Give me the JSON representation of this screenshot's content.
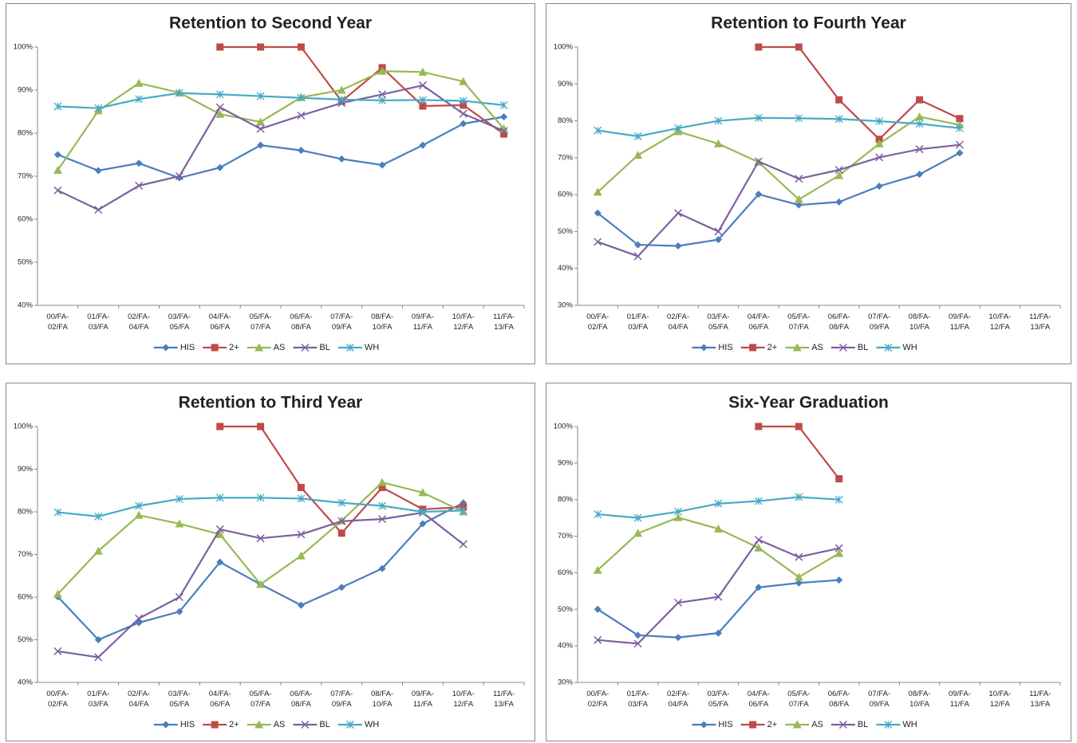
{
  "chart_data": [
    {
      "type": "line",
      "title": "Retention to Second Year",
      "categories": [
        "00/FA-02/FA",
        "01/FA-03/FA",
        "02/FA-04/FA",
        "03/FA-05/FA",
        "04/FA-06/FA",
        "05/FA-07/FA",
        "06/FA-08/FA",
        "07/FA-09/FA",
        "08/FA-10/FA",
        "09/FA-11/FA",
        "10/FA-12/FA",
        "11/FA-13/FA"
      ],
      "ylim": [
        40,
        100
      ],
      "yticks": [
        {
          "value": 40,
          "label": "40%"
        },
        {
          "value": 50,
          "label": "50%"
        },
        {
          "value": 60,
          "label": "60%"
        },
        {
          "value": 70,
          "label": "70%"
        },
        {
          "value": 80,
          "label": "80%"
        },
        {
          "value": 90,
          "label": "90%"
        },
        {
          "value": 100,
          "label": "100%"
        }
      ],
      "series": [
        {
          "name": "HIS",
          "color": "#4a7ebb",
          "marker": "diamond",
          "values": [
            75,
            71.3,
            73,
            69.6,
            72,
            77.2,
            76,
            74,
            72.6,
            77.2,
            82.2,
            83.8
          ]
        },
        {
          "name": "2+",
          "color": "#be4b48",
          "marker": "square",
          "values": [
            null,
            null,
            null,
            null,
            100,
            100,
            100,
            87.4,
            95.2,
            86.3,
            86.5,
            79.8
          ]
        },
        {
          "name": "AS",
          "color": "#98b954",
          "marker": "triangle",
          "values": [
            71.4,
            85.2,
            91.6,
            89.4,
            84.4,
            82.6,
            88.3,
            90,
            94.4,
            94.2,
            92,
            81
          ]
        },
        {
          "name": "BL",
          "color": "#7d60a0",
          "marker": "x",
          "values": [
            66.7,
            62.2,
            67.8,
            70,
            86,
            81,
            84.1,
            87,
            89,
            91.1,
            84.5,
            80.5
          ]
        },
        {
          "name": "WH",
          "color": "#46aac5",
          "marker": "star",
          "values": [
            86.2,
            85.8,
            87.9,
            89.3,
            89,
            88.6,
            88.2,
            87.8,
            87.6,
            87.7,
            87.5,
            86.5
          ]
        }
      ]
    },
    {
      "type": "line",
      "title": "Retention to Fourth Year",
      "categories": [
        "00/FA-02/FA",
        "01/FA-03/FA",
        "02/FA-04/FA",
        "03/FA-05/FA",
        "04/FA-06/FA",
        "05/FA-07/FA",
        "06/FA-08/FA",
        "07/FA-09/FA",
        "08/FA-10/FA",
        "09/FA-11/FA",
        "10/FA-12/FA",
        "11/FA-13/FA"
      ],
      "ylim": [
        30,
        100
      ],
      "yticks": [
        {
          "value": 30,
          "label": "30%"
        },
        {
          "value": 40,
          "label": "40%"
        },
        {
          "value": 50,
          "label": "50%"
        },
        {
          "value": 60,
          "label": "60%"
        },
        {
          "value": 70,
          "label": "70%"
        },
        {
          "value": 80,
          "label": "80%"
        },
        {
          "value": 90,
          "label": "90%"
        },
        {
          "value": 100,
          "label": "100%"
        }
      ],
      "series": [
        {
          "name": "HIS",
          "color": "#4a7ebb",
          "marker": "diamond",
          "values": [
            55,
            46.4,
            46.1,
            47.8,
            60.1,
            57.2,
            58,
            62.3,
            65.5,
            71.3,
            null,
            null
          ]
        },
        {
          "name": "2+",
          "color": "#be4b48",
          "marker": "square",
          "values": [
            null,
            null,
            null,
            null,
            100,
            100,
            85.7,
            75,
            85.7,
            80.6,
            null,
            null
          ]
        },
        {
          "name": "AS",
          "color": "#98b954",
          "marker": "triangle",
          "values": [
            60.7,
            70.7,
            77.1,
            73.8,
            68.8,
            58.7,
            65.2,
            73.8,
            81.1,
            78.9,
            null,
            null
          ]
        },
        {
          "name": "BL",
          "color": "#7d60a0",
          "marker": "x",
          "values": [
            47.2,
            43.3,
            55,
            50,
            69,
            64.3,
            66.7,
            70.1,
            72.3,
            73.5,
            null,
            null
          ]
        },
        {
          "name": "WH",
          "color": "#46aac5",
          "marker": "star",
          "values": [
            77.4,
            75.8,
            78,
            80,
            80.8,
            80.7,
            80.5,
            79.9,
            79.2,
            78,
            null,
            null
          ]
        }
      ]
    },
    {
      "type": "line",
      "title": "Retention to Third Year",
      "categories": [
        "00/FA-02/FA",
        "01/FA-03/FA",
        "02/FA-04/FA",
        "03/FA-05/FA",
        "04/FA-06/FA",
        "05/FA-07/FA",
        "06/FA-08/FA",
        "07/FA-09/FA",
        "08/FA-10/FA",
        "09/FA-11/FA",
        "10/FA-12/FA",
        "11/FA-13/FA"
      ],
      "ylim": [
        40,
        100
      ],
      "yticks": [
        {
          "value": 40,
          "label": "40%"
        },
        {
          "value": 50,
          "label": "50%"
        },
        {
          "value": 60,
          "label": "60%"
        },
        {
          "value": 70,
          "label": "70%"
        },
        {
          "value": 80,
          "label": "80%"
        },
        {
          "value": 90,
          "label": "90%"
        },
        {
          "value": 100,
          "label": "100%"
        }
      ],
      "series": [
        {
          "name": "HIS",
          "color": "#4a7ebb",
          "marker": "diamond",
          "values": [
            60.1,
            50,
            54,
            56.6,
            68.2,
            63,
            58.1,
            62.3,
            66.7,
            77.2,
            82.1,
            null
          ]
        },
        {
          "name": "2+",
          "color": "#be4b48",
          "marker": "square",
          "values": [
            null,
            null,
            null,
            null,
            100,
            100,
            85.7,
            75,
            85.7,
            80.6,
            81.1,
            null
          ]
        },
        {
          "name": "AS",
          "color": "#98b954",
          "marker": "triangle",
          "values": [
            60.7,
            70.8,
            79.2,
            77.2,
            74.7,
            63,
            69.7,
            77.9,
            86.9,
            84.5,
            80,
            null
          ]
        },
        {
          "name": "BL",
          "color": "#7d60a0",
          "marker": "x",
          "values": [
            47.3,
            45.9,
            55,
            60,
            75.9,
            73.8,
            74.7,
            77.8,
            78.3,
            79.8,
            72.4,
            null
          ]
        },
        {
          "name": "WH",
          "color": "#46aac5",
          "marker": "star",
          "values": [
            79.9,
            78.9,
            81.4,
            83,
            83.3,
            83.3,
            83.1,
            82.1,
            81.4,
            80,
            80.3,
            null
          ]
        }
      ]
    },
    {
      "type": "line",
      "title": "Six-Year Graduation",
      "categories": [
        "00/FA-02/FA",
        "01/FA-03/FA",
        "02/FA-04/FA",
        "03/FA-05/FA",
        "04/FA-06/FA",
        "05/FA-07/FA",
        "06/FA-08/FA",
        "07/FA-09/FA",
        "08/FA-10/FA",
        "09/FA-11/FA",
        "10/FA-12/FA",
        "11/FA-13/FA"
      ],
      "ylim": [
        30,
        100
      ],
      "yticks": [
        {
          "value": 30,
          "label": "30%"
        },
        {
          "value": 40,
          "label": "40%"
        },
        {
          "value": 50,
          "label": "50%"
        },
        {
          "value": 60,
          "label": "60%"
        },
        {
          "value": 70,
          "label": "70%"
        },
        {
          "value": 80,
          "label": "80%"
        },
        {
          "value": 90,
          "label": "90%"
        },
        {
          "value": 100,
          "label": "100%"
        }
      ],
      "series": [
        {
          "name": "HIS",
          "color": "#4a7ebb",
          "marker": "diamond",
          "values": [
            50,
            42.9,
            42.3,
            43.5,
            56,
            57.2,
            58,
            null,
            null,
            null,
            null,
            null
          ]
        },
        {
          "name": "2+",
          "color": "#be4b48",
          "marker": "square",
          "values": [
            null,
            null,
            null,
            null,
            100,
            100,
            85.7,
            null,
            null,
            null,
            null,
            null
          ]
        },
        {
          "name": "AS",
          "color": "#98b954",
          "marker": "triangle",
          "values": [
            60.7,
            70.8,
            75.1,
            72,
            66.8,
            58.8,
            65.3,
            null,
            null,
            null,
            null,
            null
          ]
        },
        {
          "name": "BL",
          "color": "#7d60a0",
          "marker": "x",
          "values": [
            41.6,
            40.6,
            51.8,
            53.4,
            69,
            64.3,
            66.7,
            null,
            null,
            null,
            null,
            null
          ]
        },
        {
          "name": "WH",
          "color": "#46aac5",
          "marker": "star",
          "values": [
            76,
            75,
            76.7,
            78.9,
            79.6,
            80.7,
            80,
            null,
            null,
            null,
            null,
            null
          ]
        }
      ]
    }
  ]
}
